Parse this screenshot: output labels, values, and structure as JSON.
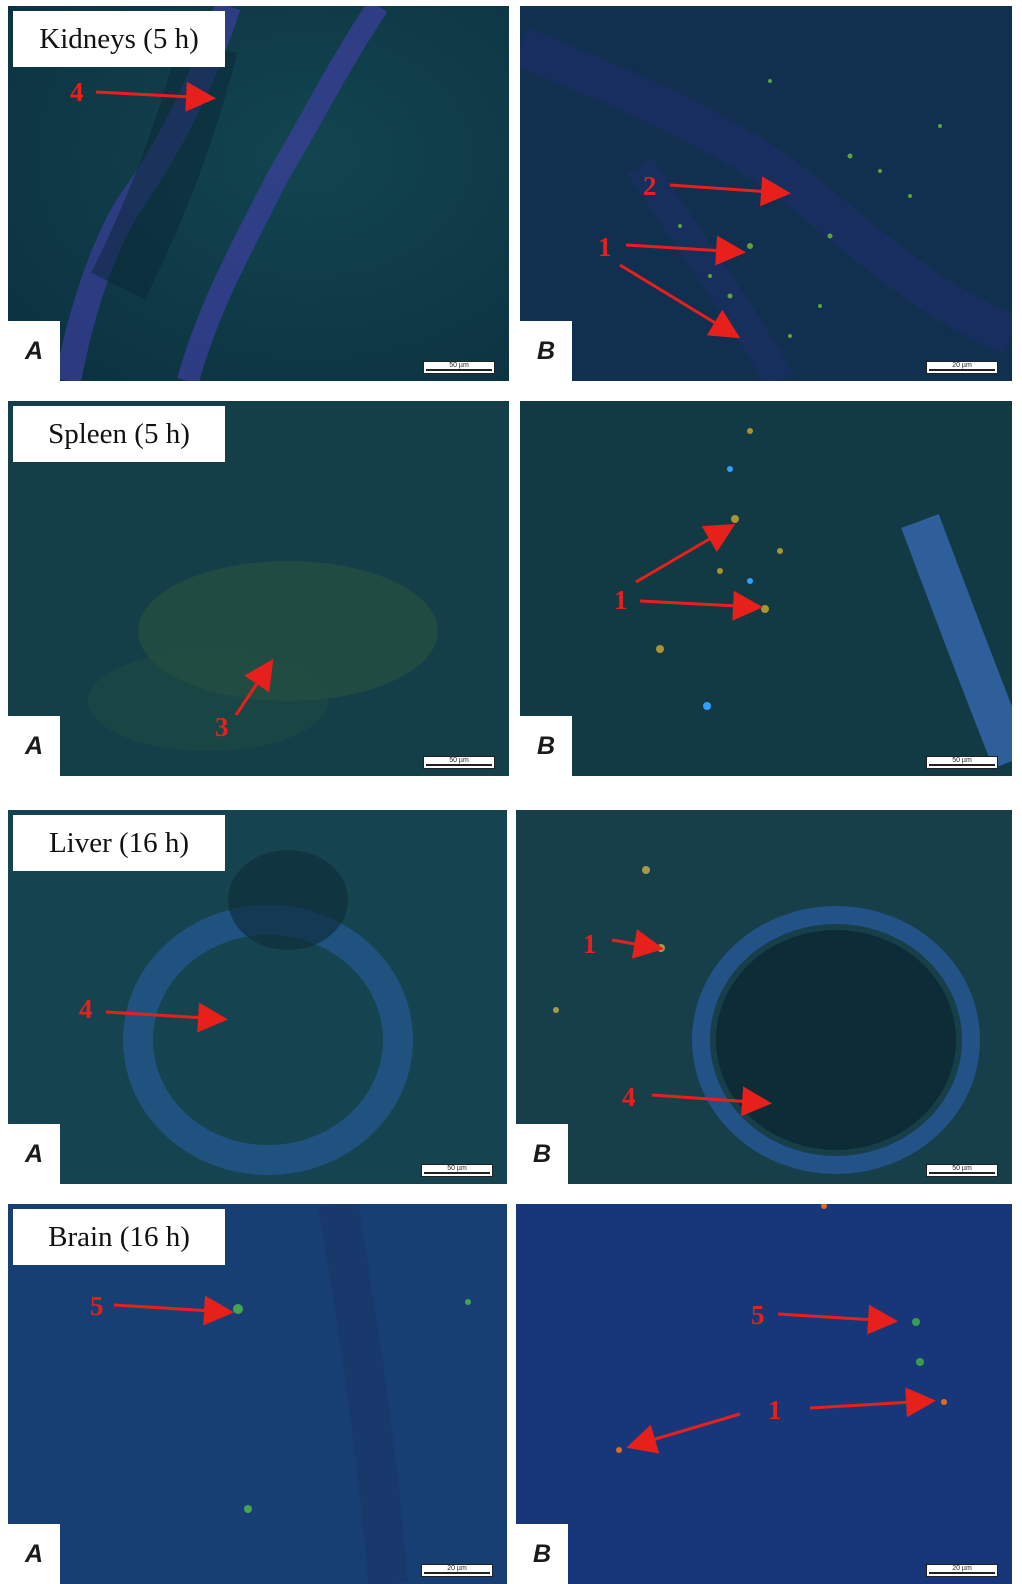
{
  "rows": [
    {
      "title": "Kidneys (5 h)",
      "panels": [
        {
          "letter": "A",
          "scale": "50 µm"
        },
        {
          "letter": "B",
          "scale": "20 µm"
        }
      ]
    },
    {
      "title": "Spleen (5 h)",
      "panels": [
        {
          "letter": "A",
          "scale": "50 µm"
        },
        {
          "letter": "B",
          "scale": "50 µm"
        }
      ]
    },
    {
      "title": "Liver (16 h)",
      "panels": [
        {
          "letter": "A",
          "scale": "50 µm"
        },
        {
          "letter": "B",
          "scale": "50 µm"
        }
      ]
    },
    {
      "title": "Brain (16 h)",
      "panels": [
        {
          "letter": "A",
          "scale": "20 µm"
        },
        {
          "letter": "B",
          "scale": "20 µm"
        }
      ]
    }
  ],
  "markers": [
    "4",
    "2",
    "1",
    "3",
    "1",
    "4",
    "1",
    "4",
    "5",
    "5",
    "1"
  ],
  "colors": {
    "arrow": "#e8201c",
    "kidney_bg": "#0f3b4a",
    "spleen_bg": "#123d48",
    "liver_bg": "#15434f",
    "brain_bg": "#143a6a"
  }
}
